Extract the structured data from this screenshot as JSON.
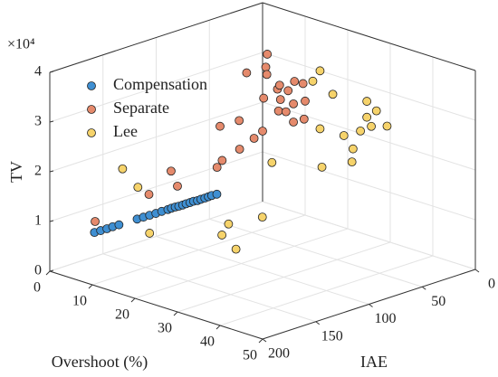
{
  "chart_data": {
    "type": "scatter3d",
    "x_label": "Overshoot (%)",
    "y_label": "IAE",
    "z_label": "TV",
    "z_multiplier": "×10⁴",
    "xlim": [
      0,
      50
    ],
    "xticks": [
      0,
      10,
      20,
      30,
      40,
      50
    ],
    "ylim": [
      0,
      200
    ],
    "yticks": [
      0,
      50,
      100,
      150,
      200
    ],
    "zlim": [
      0,
      4
    ],
    "zticks": [
      0,
      1,
      2,
      3,
      4
    ],
    "grid": true,
    "legend": "upper-left",
    "series": [
      {
        "name": "Compensation",
        "color": "#3f8fd2",
        "x": [
          7.5,
          8.1,
          8.7,
          9.2,
          9.8,
          11.5,
          12.1,
          12.7,
          13.3,
          13.8,
          14.4,
          14.7,
          15.1,
          15.4,
          15.8,
          16.1,
          16.5,
          16.8,
          17.2,
          17.5,
          17.9,
          18.2,
          18.5,
          19
        ],
        "y": [
          188,
          184.6,
          181.1,
          177.7,
          174.2,
          163.9,
          160.4,
          157,
          153.5,
          150,
          146.6,
          144.5,
          142.5,
          140.4,
          138.3,
          136.3,
          134.2,
          132.1,
          130,
          128,
          125.9,
          123.8,
          121.8,
          119
        ],
        "z": [
          0.9,
          0.93,
          0.96,
          0.99,
          1.02,
          1.11,
          1.14,
          1.17,
          1.2,
          1.23,
          1.26,
          1.28,
          1.3,
          1.31,
          1.33,
          1.35,
          1.37,
          1.39,
          1.4,
          1.42,
          1.44,
          1.46,
          1.48,
          1.5
        ]
      },
      {
        "name": "Separate",
        "color": "#e58a6c",
        "x": [
          5.4,
          12.8,
          15,
          18.3,
          20,
          21.6,
          23,
          16,
          20,
          24.7,
          25,
          26,
          27,
          21.1,
          22,
          23,
          29,
          28,
          24,
          26,
          30,
          27,
          25,
          22,
          31,
          26,
          23,
          20
        ],
        "y": [
          179,
          158,
          140,
          116,
          118,
          108,
          100,
          150,
          120,
          82,
          85,
          80,
          78,
          80,
          85,
          88,
          87,
          90,
          95,
          75,
          80,
          70,
          100,
          110,
          85,
          90,
          76,
          95
        ],
        "z": [
          1.0,
          1.6,
          1.7,
          2.0,
          2.2,
          2.4,
          2.6,
          2.1,
          2.9,
          3.3,
          3.1,
          3.5,
          3.7,
          4.1,
          3.9,
          3.8,
          3.0,
          3.2,
          3.4,
          3.2,
          3.4,
          3.6,
          2.8,
          3.0,
          3.1,
          3.6,
          3.5,
          3.8
        ]
      },
      {
        "name": "Lee",
        "color": "#f6d36b",
        "x": [
          34.5,
          30.8,
          30.7,
          26.7,
          23.6,
          23.7,
          7.6,
          10.7,
          10.7,
          27.3,
          36,
          33,
          38,
          35,
          29,
          32,
          25,
          24,
          28,
          36,
          31,
          33
        ],
        "y": [
          61.6,
          21,
          67,
          98,
          132.6,
          95,
          162,
          160,
          149,
          62,
          46,
          40,
          35,
          55,
          50,
          30,
          125,
          128,
          58,
          60,
          70,
          25
        ],
        "z": [
          2.7,
          2.5,
          2.0,
          2.2,
          0.9,
          1.0,
          2.0,
          1.7,
          0.7,
          3.6,
          3.0,
          2.6,
          2.8,
          2.4,
          3.3,
          3.1,
          0.6,
          1.1,
          3.8,
          2.2,
          2.8,
          2.9
        ]
      }
    ]
  }
}
